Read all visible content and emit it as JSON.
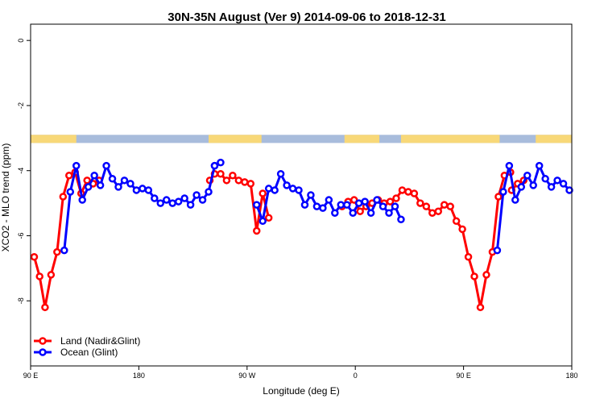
{
  "chart_data": {
    "type": "line",
    "title": "30N-35N August (Ver 9)   2014-09-06 to 2018-12-31",
    "xlabel": "Longitude (deg E)",
    "ylabel": "XCO2 - MLO trend (ppm)",
    "xlim": [
      90,
      540
    ],
    "ylim": [
      -10,
      0.5
    ],
    "x_ticks": [
      {
        "value": 90,
        "label": "90 E"
      },
      {
        "value": 180,
        "label": "180"
      },
      {
        "value": 270,
        "label": "90 W"
      },
      {
        "value": 360,
        "label": "0"
      },
      {
        "value": 450,
        "label": "90 E"
      },
      {
        "value": 540,
        "label": "180"
      }
    ],
    "y_ticks": [
      {
        "value": 0,
        "label": "0"
      },
      {
        "value": -2,
        "label": "-2"
      },
      {
        "value": -4,
        "label": "-4"
      },
      {
        "value": -6,
        "label": "-6"
      },
      {
        "value": -8,
        "label": "-8"
      }
    ],
    "grid": false,
    "legend_position": "bottom-left",
    "land_band": {
      "y_range": [
        -3.15,
        -2.9
      ],
      "ocean_color": "#a8bcdc",
      "land_color": "#f8d878",
      "land_segments": [
        [
          90,
          128
        ],
        [
          238,
          282
        ],
        [
          351,
          380
        ],
        [
          398,
          480
        ],
        [
          510,
          540
        ]
      ]
    },
    "series": [
      {
        "name": "Land (Nadir&Glint)",
        "color": "#ff0000",
        "segments": [
          {
            "x": [
              93,
              97.5,
              102,
              107,
              112,
              117,
              122,
              127,
              132,
              137,
              142,
              147
            ],
            "y": [
              -6.65,
              -7.25,
              -8.2,
              -7.2,
              -6.5,
              -4.8,
              -4.15,
              -4.05,
              -4.7,
              -4.3,
              -4.4,
              -4.3
            ]
          },
          {
            "x": [
              239,
              243,
              248,
              253,
              258,
              263,
              268,
              273,
              278,
              283,
              288
            ],
            "y": [
              -4.3,
              -4.1,
              -4.1,
              -4.3,
              -4.15,
              -4.3,
              -4.35,
              -4.4,
              -5.85,
              -4.7,
              -5.45
            ]
          },
          {
            "x": [
              349,
              354,
              359,
              364,
              369,
              374,
              379,
              384,
              389,
              394,
              399,
              404,
              409,
              414,
              419,
              424,
              429,
              434,
              439,
              444,
              449,
              454,
              459,
              464,
              469,
              474,
              479,
              484,
              489
            ],
            "y": [
              -5.1,
              -4.95,
              -4.9,
              -5.25,
              -5.1,
              -5.0,
              -4.9,
              -5.0,
              -4.95,
              -4.85,
              -4.6,
              -4.65,
              -4.7,
              -5.0,
              -5.1,
              -5.3,
              -5.25,
              -5.05,
              -5.1,
              -5.55,
              -5.8,
              -6.65,
              -7.25,
              -8.2,
              -7.2,
              -6.5,
              -4.8,
              -4.15,
              -4.05
            ]
          },
          {
            "x": [
              490,
              495,
              500
            ],
            "y": [
              -4.6,
              -4.4,
              -4.3
            ]
          }
        ]
      },
      {
        "name": "Ocean (Glint)",
        "color": "#0000ff",
        "segments": [
          {
            "x": [
              118,
              123,
              128,
              133,
              138,
              143,
              148,
              153,
              158,
              163,
              168,
              173,
              178,
              183,
              188,
              193,
              198,
              203,
              208,
              213,
              218,
              223,
              228,
              233,
              238,
              243
            ],
            "y": [
              -6.45,
              -4.65,
              -3.85,
              -4.9,
              -4.5,
              -4.15,
              -4.45,
              -3.85,
              -4.25,
              -4.5,
              -4.3,
              -4.4,
              -4.6,
              -4.55,
              -4.6,
              -4.85,
              -5.0,
              -4.9,
              -5.0,
              -4.95,
              -4.85,
              -5.05,
              -4.75,
              -4.9,
              -4.65,
              -3.85
            ]
          },
          {
            "x": [
              243,
              248
            ],
            "y": [
              -3.85,
              -3.75
            ]
          },
          {
            "x": [
              278,
              283,
              288,
              293,
              298,
              303,
              308,
              313,
              318,
              323,
              328,
              333,
              338,
              343,
              348,
              353,
              358,
              363,
              368,
              373,
              378,
              383,
              388,
              393,
              398
            ],
            "y": [
              -5.05,
              -5.55,
              -4.55,
              -4.6,
              -4.1,
              -4.45,
              -4.55,
              -4.6,
              -5.05,
              -4.75,
              -5.1,
              -5.15,
              -4.9,
              -5.3,
              -5.05,
              -5.05,
              -5.3,
              -5.0,
              -4.95,
              -5.3,
              -4.9,
              -5.1,
              -5.3,
              -5.1,
              -5.5
            ]
          },
          {
            "x": [
              478,
              483,
              488,
              493,
              498,
              503,
              508,
              513,
              518,
              523,
              528,
              533,
              538
            ],
            "y": [
              -6.45,
              -4.65,
              -3.85,
              -4.9,
              -4.5,
              -4.15,
              -4.45,
              -3.85,
              -4.25,
              -4.5,
              -4.3,
              -4.4,
              -4.6
            ]
          }
        ]
      }
    ]
  }
}
